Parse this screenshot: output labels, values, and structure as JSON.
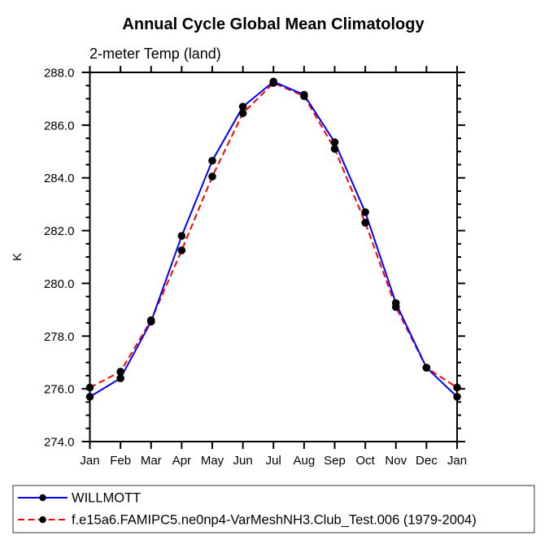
{
  "chart_data": {
    "type": "line",
    "title": "Annual Cycle Global Mean Climatology",
    "subtitle": "2-meter Temp (land)",
    "ylabel": "K",
    "categories": [
      "Jan",
      "Feb",
      "Mar",
      "Apr",
      "May",
      "Jun",
      "Jul",
      "Aug",
      "Sep",
      "Oct",
      "Nov",
      "Dec",
      "Jan"
    ],
    "ylim": [
      274.0,
      288.0
    ],
    "y_major_step": 2.0,
    "y_minor_step": 0.5,
    "y_tick_format_decimals": 1,
    "grid": false,
    "legend_position": "bottom-box",
    "axis_color": "#000000",
    "series": [
      {
        "name": "WILLMOTT",
        "line_color": "#0000ff",
        "line_style": "solid",
        "marker": "filled-circle",
        "marker_color": "#000000",
        "values": [
          275.7,
          276.4,
          278.55,
          281.8,
          284.65,
          286.7,
          287.65,
          287.15,
          285.35,
          282.7,
          279.25,
          276.8,
          275.7
        ]
      },
      {
        "name": "f.e15a6.FAMIPC5.ne0np4-VarMeshNH3.Club_Test.006 (1979-2004)",
        "line_color": "#ff0000",
        "line_style": "dashed",
        "marker": "filled-circle",
        "marker_color": "#000000",
        "values": [
          276.05,
          276.65,
          278.6,
          281.25,
          284.05,
          286.45,
          287.6,
          287.1,
          285.1,
          282.3,
          279.1,
          276.8,
          276.05
        ]
      }
    ]
  }
}
